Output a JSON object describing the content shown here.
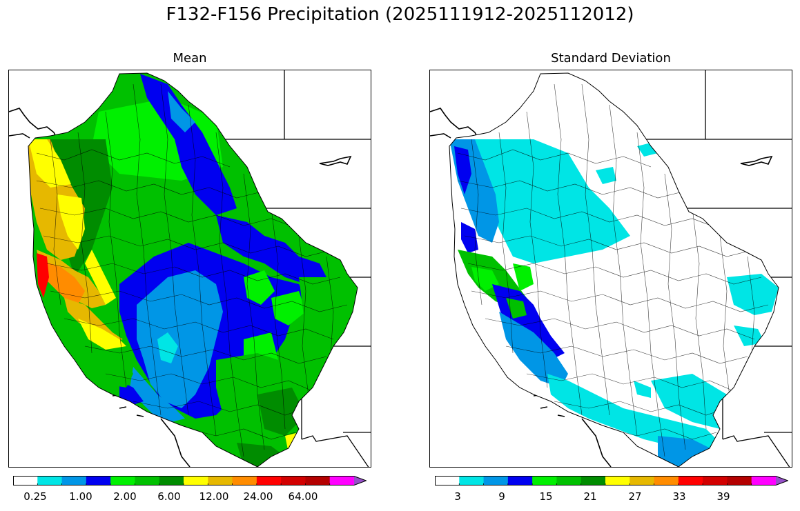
{
  "figure": {
    "suptitle": "F132-F156 Precipitation (2025111912-2025112012)"
  },
  "panels": [
    {
      "title": "Mean",
      "colorbar": {
        "colors": [
          "#ffffff",
          "#00e5e5",
          "#0096e6",
          "#0000f0",
          "#00f000",
          "#00c000",
          "#008c00",
          "#ffff00",
          "#e6b800",
          "#ff8c00",
          "#ff0000",
          "#d20000",
          "#b40000",
          "#ff00ff",
          "#9650c8"
        ],
        "extend": "max",
        "tick_labels": [
          "0.25",
          "1.00",
          "2.00",
          "6.00",
          "12.00",
          "24.00",
          "64.00"
        ]
      },
      "legend_map": {
        "note_colors_by_region": {
          "pacific_coast_north": "#e6b800",
          "pacific_coast_far_north": "#ffff00",
          "coast_hotspot": "#ff0000",
          "coast_orange": "#ff8c00",
          "cascades_interior": "#008c00",
          "northern_rockies": "#00c000",
          "idaho_band": "#00f000",
          "central_blue": "#0000f0",
          "great_basin": "#0096e6",
          "southwest": "#00c000",
          "arizona_south": "#008c00"
        }
      }
    },
    {
      "title": "Standard Deviation",
      "colorbar": {
        "colors": [
          "#ffffff",
          "#00e5e5",
          "#0096e6",
          "#0000f0",
          "#00f000",
          "#00c000",
          "#008c00",
          "#ffff00",
          "#e6b800",
          "#ff8c00",
          "#ff0000",
          "#d20000",
          "#b40000",
          "#ff00ff",
          "#9650c8"
        ],
        "extend": "max",
        "tick_labels": [
          "3",
          "9",
          "15",
          "21",
          "27",
          "33",
          "39"
        ]
      }
    }
  ]
}
